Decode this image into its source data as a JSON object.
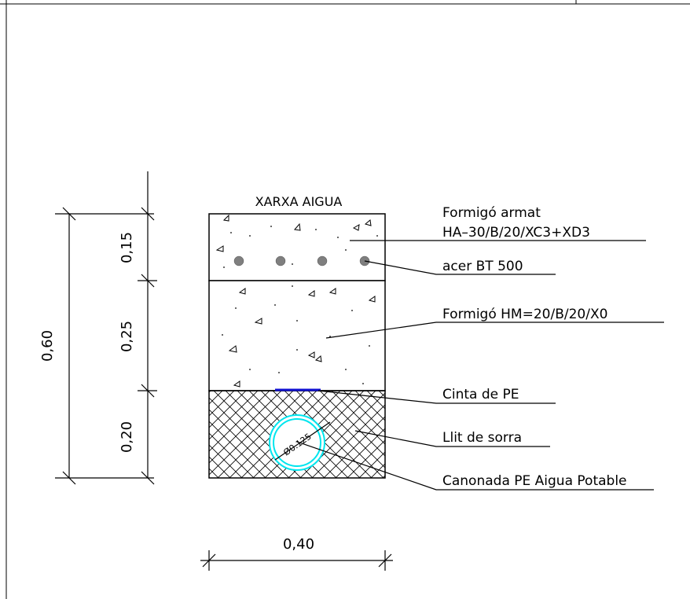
{
  "section_title": "XARXA AIGUA",
  "dimensions": {
    "total_height": "0,60",
    "layer_top": "0,15",
    "layer_middle": "0,25",
    "layer_bottom": "0,20",
    "width": "0,40"
  },
  "pipe_label": "Ø0.125",
  "callouts": {
    "reinforced_concrete_line1": "Formigó armat",
    "reinforced_concrete_line2": "HA–30/B/20/XC3+XD3",
    "steel": "acer BT 500",
    "mass_concrete": "Formigó HM=20/B/20/X0",
    "tape": "Cinta de PE",
    "sand_bed": "Llit de sorra",
    "pipe": "Canonada PE Aigua Potable"
  },
  "colors": {
    "line": "#000000",
    "rebar": "#7f7f7f",
    "pipe": "#00e5ee",
    "tape": "#1010d0"
  }
}
